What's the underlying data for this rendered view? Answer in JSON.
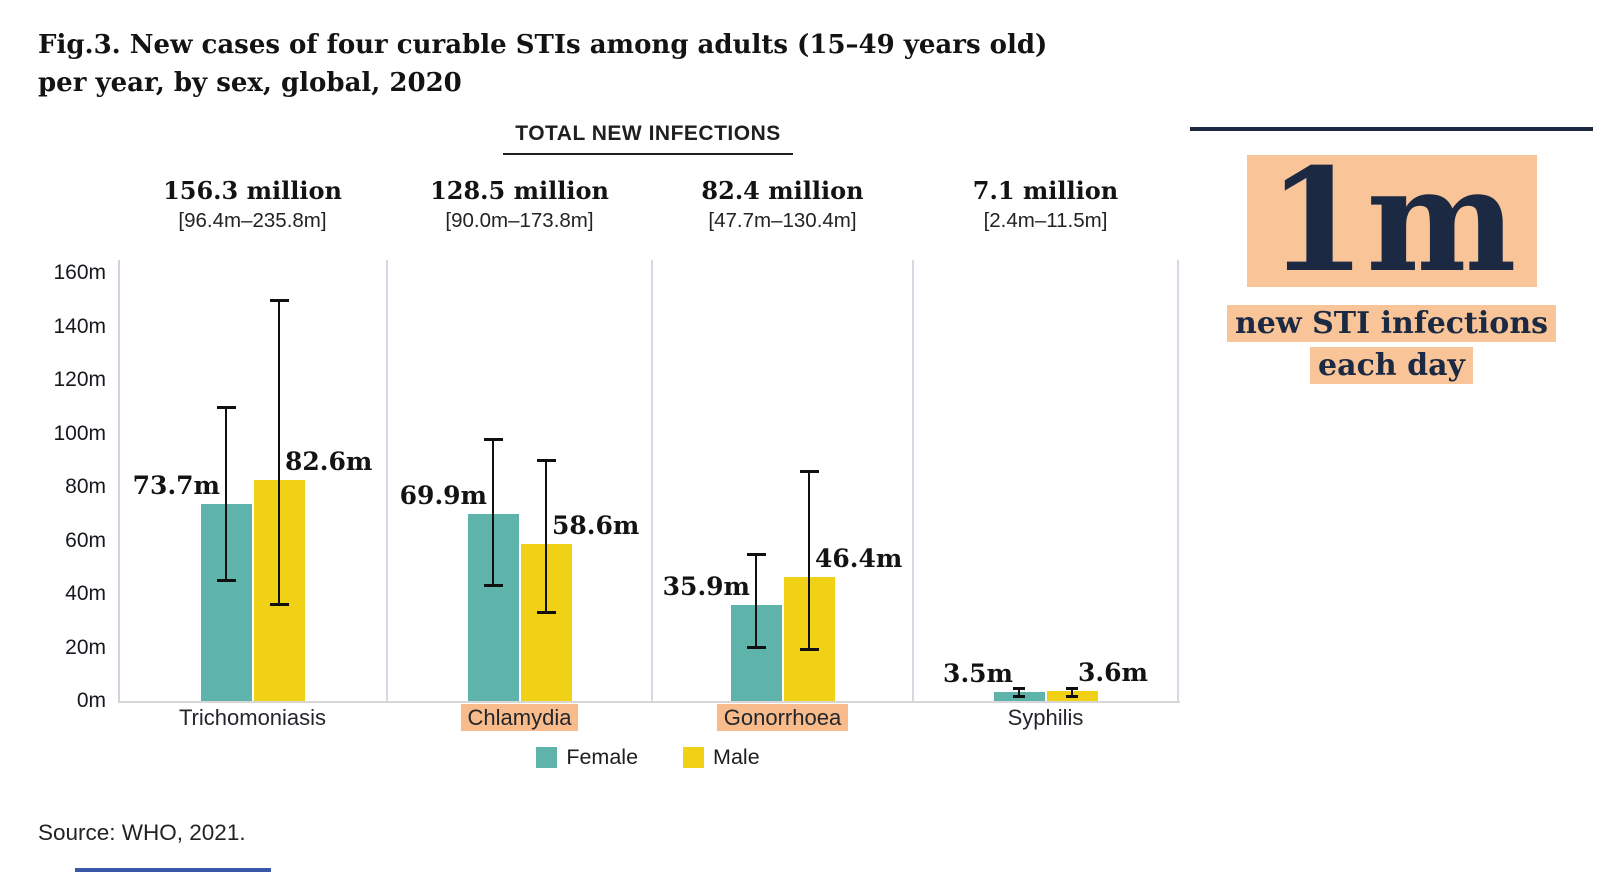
{
  "figure": {
    "title_line1": "Fig.3. New cases of four curable STIs among adults (15–49 years old)",
    "title_line2": "per year, by sex, global, 2020",
    "source": "Source: WHO, 2021."
  },
  "infographic": {
    "big_number": "1m",
    "caption_line1": "new STI infections",
    "caption_line2": "each day",
    "accent_bg": "#f8c498",
    "navy": "#1b2a42"
  },
  "colors": {
    "female_bar": "#5eb3ab",
    "male_bar": "#f1d116",
    "category_highlight": "#f8bb8c",
    "axis_line": "#cfd4de",
    "error_bar": "#101010",
    "top_rule": "#1b2a42",
    "footer_rule": "#3a57a7"
  },
  "chart_data": {
    "type": "bar",
    "title": "TOTAL NEW INFECTIONS",
    "categories": [
      "Trichomoniasis",
      "Chlamydia",
      "Gonorrhoea",
      "Syphilis"
    ],
    "category_highlighted": [
      false,
      true,
      true,
      false
    ],
    "totals": [
      {
        "value": "156.3 million",
        "range": "[96.4m–235.8m]"
      },
      {
        "value": "128.5 million",
        "range": "[90.0m–173.8m]"
      },
      {
        "value": "82.4 million",
        "range": "[47.7m–130.4m]"
      },
      {
        "value": "7.1 million",
        "range": "[2.4m–11.5m]"
      }
    ],
    "ylim": [
      0,
      160
    ],
    "ytick_step": 20,
    "ytick_suffix": "m",
    "grid": false,
    "legend_position": "bottom",
    "legend": [
      "Female",
      "Male"
    ],
    "series": [
      {
        "name": "Female",
        "color": "#5eb3ab",
        "values": [
          73.7,
          69.9,
          35.9,
          3.5
        ],
        "value_labels": [
          "73.7m",
          "69.9m",
          "35.9m",
          "3.5m"
        ],
        "error_low": [
          45,
          43,
          20,
          1.5
        ],
        "error_high": [
          110,
          98,
          55,
          5
        ]
      },
      {
        "name": "Male",
        "color": "#f1d116",
        "values": [
          82.6,
          58.6,
          46.4,
          3.6
        ],
        "value_labels": [
          "82.6m",
          "58.6m",
          "46.4m",
          "3.6m"
        ],
        "error_low": [
          36,
          33,
          19,
          1.5
        ],
        "error_high": [
          150,
          90,
          86,
          5
        ]
      }
    ]
  }
}
